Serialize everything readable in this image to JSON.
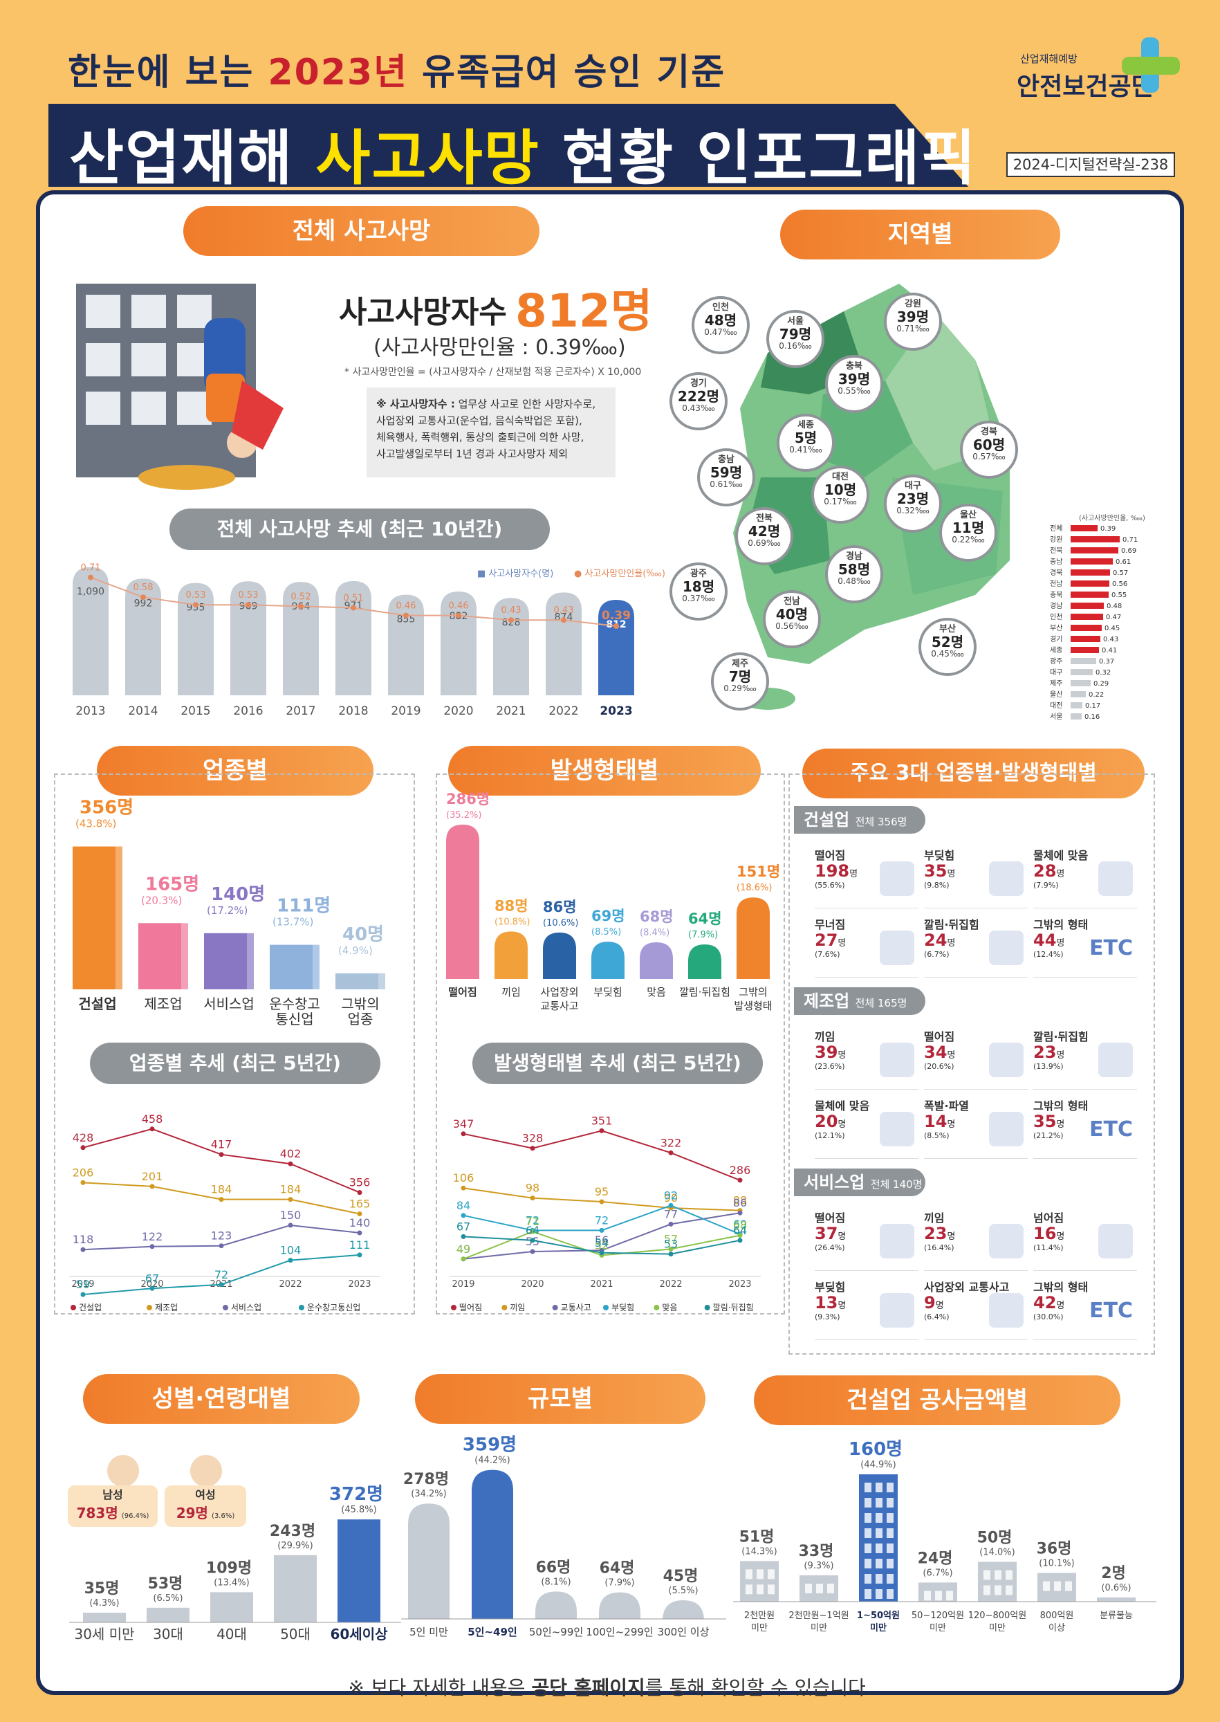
{
  "header": {
    "subtitle_pre": "한눈에 보는 ",
    "subtitle_year": "2023년",
    "subtitle_post": " 유족급여 승인 기준",
    "title_pre": "산업재해 ",
    "title_hl": "사고사망",
    "title_post": " 현황 인포그래픽",
    "org_small": "산업재해예방",
    "org_name": "안전보건공단",
    "doc_id": "2024-디지털전략실-238"
  },
  "total": {
    "section": "전체 사고사망",
    "label": "사고사망자수",
    "value": "812명",
    "rate": "(사고사망만인율 : 0.39‱)",
    "formula": "* 사고사망만인율 = (사고사망자수 / 산재보험 적용 근로자수) X 10,000",
    "def_head": "※ 사고사망자수 :",
    "def_l1": "업무상 사고로 인한 사망자수로,",
    "def_l2": "사업장외 교통사고(운수업, 음식숙박업은 포함),",
    "def_l3": "체육행사, 폭력행위, 통상의 출퇴근에 의한 사망,",
    "def_l4": "사고발생일로부터 1년 경과 사고사망자 제외"
  },
  "trend10": {
    "section": "전체 사고사망 추세 (최근 10년간)",
    "legend_a": "■ 사고사망자수(명)",
    "legend_b": "● 사고사망만인율(‱)"
  },
  "region": {
    "section": "지역별",
    "side_caption": "(사고사망만인율, ‱)"
  },
  "industry": {
    "section": "업종별",
    "trend_section": "업종별 추세 (최근 5년간)"
  },
  "accident": {
    "section": "발생형태별",
    "trend_section": "발생형태별 추세 (최근 5년간)"
  },
  "top3": {
    "section": "주요 3대 업종별·발생형태별",
    "groups": [
      {
        "name": "건설업",
        "total": "전체 356명",
        "items": [
          [
            "떨어짐",
            "198",
            "(55.6%)"
          ],
          [
            "부딪힘",
            "35",
            "(9.8%)"
          ],
          [
            "물체에 맞음",
            "28",
            "(7.9%)"
          ],
          [
            "무너짐",
            "27",
            "(7.6%)"
          ],
          [
            "깔림·뒤집힘",
            "24",
            "(6.7%)"
          ],
          [
            "그밖의 형태",
            "44",
            "(12.4%)"
          ]
        ]
      },
      {
        "name": "제조업",
        "total": "전체 165명",
        "items": [
          [
            "끼임",
            "39",
            "(23.6%)"
          ],
          [
            "떨어짐",
            "34",
            "(20.6%)"
          ],
          [
            "깔림·뒤집힘",
            "23",
            "(13.9%)"
          ],
          [
            "물체에 맞음",
            "20",
            "(12.1%)"
          ],
          [
            "폭발·파열",
            "14",
            "(8.5%)"
          ],
          [
            "그밖의 형태",
            "35",
            "(21.2%)"
          ]
        ]
      },
      {
        "name": "서비스업",
        "total": "전체 140명",
        "items": [
          [
            "떨어짐",
            "37",
            "(26.4%)"
          ],
          [
            "끼임",
            "23",
            "(16.4%)"
          ],
          [
            "넘어짐",
            "16",
            "(11.4%)"
          ],
          [
            "부딪힘",
            "13",
            "(9.3%)"
          ],
          [
            "사업장외 교통사고",
            "9",
            "(6.4%)"
          ],
          [
            "그밖의 형태",
            "42",
            "(30.0%)"
          ]
        ]
      }
    ],
    "unit": "명",
    "etc": "ETC"
  },
  "sexage": {
    "section": "성별·연령대별",
    "male_label": "남성",
    "male_value": "783명",
    "male_pct": "(96.4%)",
    "female_label": "여성",
    "female_value": "29명",
    "female_pct": "(3.6%)"
  },
  "size": {
    "section": "규모별"
  },
  "construction": {
    "section": "건설업 공사금액별"
  },
  "footer": {
    "pre": "※ 보다 자세한 내용은 ",
    "bold": "공단 홈페이지",
    "post": "를 통해 확인할 수 있습니다."
  },
  "chart_data": [
    {
      "type": "bar",
      "id": "total10",
      "categories": [
        "2013",
        "2014",
        "2015",
        "2016",
        "2017",
        "2018",
        "2019",
        "2020",
        "2021",
        "2022",
        "2023"
      ],
      "series": [
        {
          "name": "사고사망자수(명)",
          "values": [
            1090,
            992,
            955,
            969,
            964,
            971,
            855,
            882,
            828,
            874,
            812
          ]
        },
        {
          "name": "사고사망만인율(‱)",
          "values": [
            0.71,
            0.58,
            0.53,
            0.53,
            0.52,
            0.51,
            0.46,
            0.46,
            0.43,
            0.43,
            0.39
          ]
        }
      ],
      "labels": [
        "1,090",
        "992",
        "955",
        "969",
        "964",
        "971",
        "855",
        "882",
        "828",
        "874",
        "812"
      ]
    },
    {
      "type": "bar",
      "id": "region_rate",
      "categories": [
        "전체",
        "강원",
        "전북",
        "충남",
        "경북",
        "전남",
        "충북",
        "경남",
        "인천",
        "부산",
        "경기",
        "세종",
        "광주",
        "대구",
        "제주",
        "울산",
        "대전",
        "서울"
      ],
      "values": [
        0.39,
        0.71,
        0.69,
        0.61,
        0.57,
        0.56,
        0.55,
        0.48,
        0.47,
        0.45,
        0.43,
        0.41,
        0.37,
        0.32,
        0.29,
        0.22,
        0.17,
        0.16
      ]
    },
    {
      "type": "table",
      "id": "region_counts",
      "rows": [
        [
          "인천",
          "48명",
          "0.47‱"
        ],
        [
          "서울",
          "79명",
          "0.16‱"
        ],
        [
          "강원",
          "39명",
          "0.71‱"
        ],
        [
          "경기",
          "222명",
          "0.43‱"
        ],
        [
          "충북",
          "39명",
          "0.55‱"
        ],
        [
          "세종",
          "5명",
          "0.41‱"
        ],
        [
          "경북",
          "60명",
          "0.57‱"
        ],
        [
          "충남",
          "59명",
          "0.61‱"
        ],
        [
          "대전",
          "10명",
          "0.17‱"
        ],
        [
          "대구",
          "23명",
          "0.32‱"
        ],
        [
          "전북",
          "42명",
          "0.69‱"
        ],
        [
          "울산",
          "11명",
          "0.22‱"
        ],
        [
          "광주",
          "18명",
          "0.37‱"
        ],
        [
          "경남",
          "58명",
          "0.48‱"
        ],
        [
          "전남",
          "40명",
          "0.56‱"
        ],
        [
          "부산",
          "52명",
          "0.45‱"
        ],
        [
          "제주",
          "7명",
          "0.29‱"
        ]
      ]
    },
    {
      "type": "bar",
      "id": "industry",
      "categories": [
        "건설업",
        "제조업",
        "서비스업",
        "운수창고 통신업",
        "그밖의 업종"
      ],
      "values": [
        356,
        165,
        140,
        111,
        40
      ],
      "pct": [
        "(43.8%)",
        "(20.3%)",
        "(17.2%)",
        "(13.7%)",
        "(4.9%)"
      ],
      "colors": [
        "#f08a2c",
        "#f0789a",
        "#8a77c4",
        "#8fb2dc",
        "#a9c2da"
      ]
    },
    {
      "type": "line",
      "id": "industry_trend",
      "x": [
        "2019",
        "2020",
        "2021",
        "2022",
        "2023"
      ],
      "series": [
        {
          "name": "건설업",
          "color": "#b3263a",
          "values": [
            428,
            458,
            417,
            402,
            356
          ]
        },
        {
          "name": "제조업",
          "color": "#d09a1e",
          "values": [
            206,
            201,
            184,
            184,
            165
          ]
        },
        {
          "name": "서비스업",
          "color": "#6e6aa8",
          "values": [
            118,
            122,
            123,
            150,
            140
          ]
        },
        {
          "name": "운수창고통신업",
          "color": "#1e9aa8",
          "values": [
            59,
            67,
            72,
            104,
            111
          ]
        }
      ]
    },
    {
      "type": "bar",
      "id": "accident",
      "categories": [
        "떨어짐",
        "끼임",
        "사업장외 교통사고",
        "부딪힘",
        "맞음",
        "깔림·뒤집힘",
        "그밖의 발생형태"
      ],
      "values": [
        286,
        88,
        86,
        69,
        68,
        64,
        151
      ],
      "pct": [
        "(35.2%)",
        "(10.8%)",
        "(10.6%)",
        "(8.5%)",
        "(8.4%)",
        "(7.9%)",
        "(18.6%)"
      ],
      "colors": [
        "#ee7b9a",
        "#f2a13a",
        "#2a62a6",
        "#3ea7d6",
        "#a69ad6",
        "#24a87c",
        "#f0842c"
      ]
    },
    {
      "type": "line",
      "id": "accident_trend",
      "x": [
        "2019",
        "2020",
        "2021",
        "2022",
        "2023"
      ],
      "series": [
        {
          "name": "떨어짐",
          "color": "#b3263a",
          "values": [
            347,
            328,
            351,
            322,
            286
          ]
        },
        {
          "name": "끼임",
          "color": "#d09a1e",
          "values": [
            106,
            98,
            95,
            90,
            88
          ]
        },
        {
          "name": "교통사고",
          "color": "#6e6aa8",
          "values": [
            49,
            55,
            56,
            77,
            86
          ]
        },
        {
          "name": "부딪힘",
          "color": "#2aa4c8",
          "values": [
            84,
            72,
            72,
            92,
            69
          ]
        },
        {
          "name": "맞음",
          "color": "#8ac24a",
          "values": [
            49,
            71,
            52,
            57,
            68
          ]
        },
        {
          "name": "깔림·뒤집힘",
          "color": "#1e8f9a",
          "values": [
            67,
            64,
            54,
            53,
            64
          ]
        }
      ]
    },
    {
      "type": "bar",
      "id": "age",
      "categories": [
        "30세 미만",
        "30대",
        "40대",
        "50대",
        "60세이상"
      ],
      "values": [
        35,
        53,
        109,
        243,
        372
      ],
      "pct": [
        "(4.3%)",
        "(6.5%)",
        "(13.4%)",
        "(29.9%)",
        "(45.8%)"
      ]
    },
    {
      "type": "bar",
      "id": "size",
      "categories": [
        "5인 미만",
        "5인~49인",
        "50인~99인",
        "100인~299인",
        "300인 이상"
      ],
      "values": [
        278,
        359,
        66,
        64,
        45
      ],
      "pct": [
        "(34.2%)",
        "(44.2%)",
        "(8.1%)",
        "(7.9%)",
        "(5.5%)"
      ]
    },
    {
      "type": "bar",
      "id": "cost",
      "categories": [
        "2천만원 미만",
        "2천만원~1억원 미만",
        "1~50억원 미만",
        "50~120억원 미만",
        "120~800억원 미만",
        "800억원 이상",
        "분류불능"
      ],
      "values": [
        51,
        33,
        160,
        24,
        50,
        36,
        2
      ],
      "pct": [
        "(14.3%)",
        "(9.3%)",
        "(44.9%)",
        "(6.7%)",
        "(14.0%)",
        "(10.1%)",
        "(0.6%)"
      ]
    }
  ]
}
